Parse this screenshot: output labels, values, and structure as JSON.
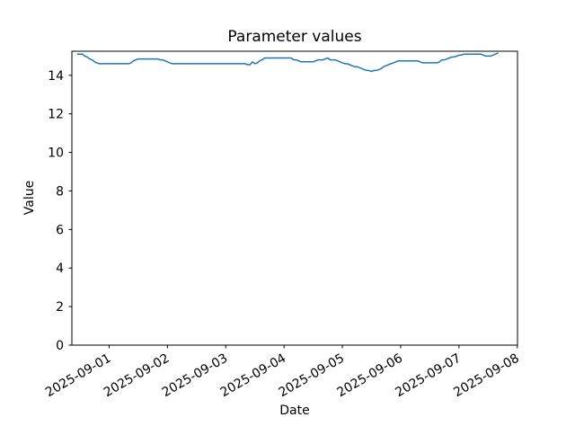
{
  "chart_data": {
    "type": "line",
    "title": "Parameter values",
    "xlabel": "Date",
    "ylabel": "Value",
    "line_color": "#1f77b4",
    "background_color": "#ffffff",
    "grid": false,
    "legend": "none",
    "ylim": [
      0,
      15.25
    ],
    "yticks": [
      0,
      2,
      4,
      6,
      8,
      10,
      12,
      14
    ],
    "xlim": [
      "2025-08-31T08:40:00Z",
      "2025-09-08T00:05:00Z"
    ],
    "xticks": [
      "2025-09-01",
      "2025-09-02",
      "2025-09-03",
      "2025-09-04",
      "2025-09-05",
      "2025-09-06",
      "2025-09-07",
      "2025-09-08"
    ],
    "xtick_labels": [
      "2025-09-01",
      "2025-09-02",
      "2025-09-03",
      "2025-09-04",
      "2025-09-05",
      "2025-09-06",
      "2025-09-07",
      "2025-09-08"
    ],
    "series_name": "Parameter values",
    "x_start": "2025-08-31T11:00:00Z",
    "x_end": "2025-09-07T16:00:00Z",
    "x_step_hours": 1,
    "values": [
      15.1,
      15.1,
      15.1,
      15.0,
      14.95,
      14.85,
      14.8,
      14.7,
      14.65,
      14.6,
      14.6,
      14.6,
      14.6,
      14.6,
      14.6,
      14.6,
      14.6,
      14.6,
      14.6,
      14.6,
      14.6,
      14.6,
      14.65,
      14.75,
      14.8,
      14.85,
      14.85,
      14.85,
      14.85,
      14.85,
      14.85,
      14.85,
      14.85,
      14.85,
      14.8,
      14.8,
      14.75,
      14.7,
      14.65,
      14.6,
      14.6,
      14.6,
      14.6,
      14.6,
      14.6,
      14.6,
      14.6,
      14.6,
      14.6,
      14.6,
      14.6,
      14.6,
      14.6,
      14.6,
      14.6,
      14.6,
      14.6,
      14.6,
      14.6,
      14.6,
      14.6,
      14.6,
      14.6,
      14.6,
      14.6,
      14.6,
      14.6,
      14.6,
      14.6,
      14.6,
      14.55,
      14.55,
      14.7,
      14.6,
      14.65,
      14.75,
      14.8,
      14.9,
      14.9,
      14.9,
      14.9,
      14.9,
      14.9,
      14.9,
      14.9,
      14.9,
      14.9,
      14.9,
      14.9,
      14.8,
      14.8,
      14.75,
      14.7,
      14.7,
      14.7,
      14.7,
      14.7,
      14.7,
      14.75,
      14.8,
      14.8,
      14.8,
      14.85,
      14.9,
      14.8,
      14.8,
      14.8,
      14.75,
      14.7,
      14.65,
      14.6,
      14.6,
      14.55,
      14.5,
      14.45,
      14.45,
      14.4,
      14.35,
      14.3,
      14.25,
      14.25,
      14.2,
      14.25,
      14.25,
      14.3,
      14.35,
      14.45,
      14.5,
      14.55,
      14.6,
      14.65,
      14.7,
      14.75,
      14.75,
      14.75,
      14.75,
      14.75,
      14.75,
      14.75,
      14.75,
      14.75,
      14.7,
      14.65,
      14.65,
      14.65,
      14.65,
      14.65,
      14.65,
      14.65,
      14.7,
      14.8,
      14.8,
      14.85,
      14.9,
      14.95,
      14.95,
      15.0,
      15.05,
      15.05,
      15.1,
      15.1,
      15.1,
      15.1,
      15.1,
      15.1,
      15.1,
      15.1,
      15.05,
      15.0,
      15.0,
      15.0,
      15.05,
      15.1,
      15.15
    ]
  }
}
